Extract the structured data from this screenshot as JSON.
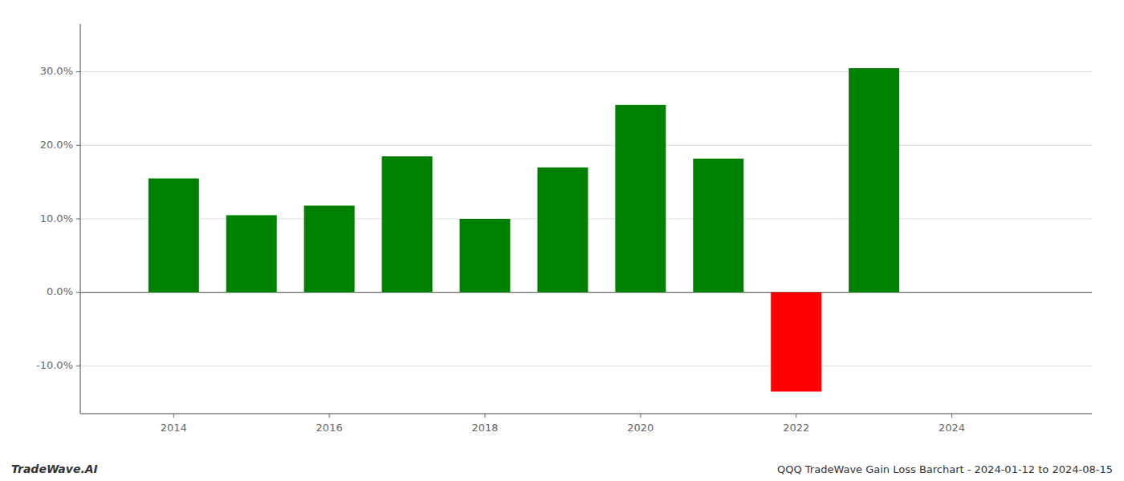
{
  "chart_data": {
    "type": "bar",
    "title": "QQQ TradeWave Gain Loss Barchart - 2024-01-12 to 2024-08-15",
    "annotations": [
      {
        "text": "TradeWave.AI"
      }
    ],
    "x": [
      2014,
      2015,
      2016,
      2017,
      2018,
      2019,
      2020,
      2021,
      2022,
      2023
    ],
    "values": [
      0.155,
      0.105,
      0.118,
      0.185,
      0.1,
      0.17,
      0.255,
      0.182,
      -0.135,
      0.305
    ],
    "colors": [
      "#008000",
      "#008000",
      "#008000",
      "#008000",
      "#008000",
      "#008000",
      "#008000",
      "#008000",
      "#ff0000",
      "#008000"
    ],
    "xlim": [
      2012.8,
      2025.8
    ],
    "xticks": [
      2014,
      2016,
      2018,
      2020,
      2022,
      2024
    ],
    "ylim": [
      -0.165,
      0.365
    ],
    "yticks": [
      {
        "value": -0.1,
        "label": "-10.0%"
      },
      {
        "value": 0.0,
        "label": "0.0%"
      },
      {
        "value": 0.1,
        "label": "10.0%"
      },
      {
        "value": 0.2,
        "label": "20.0%"
      },
      {
        "value": 0.3,
        "label": "30.0%"
      }
    ],
    "grid": true
  }
}
